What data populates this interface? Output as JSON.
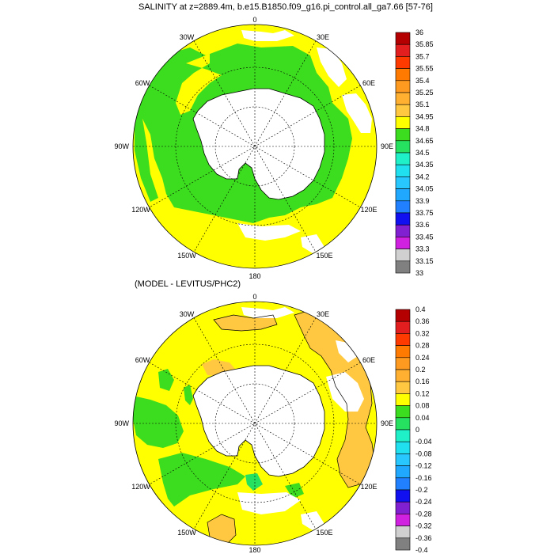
{
  "top_panel": {
    "title": "SALINITY at z=2889.4m, b.e15.B1850.f09_g16.pi_control.all_ga7.66 [57-76]",
    "map_labels": {
      "top": "0",
      "bottom": "180",
      "left": "90W",
      "right": "90E",
      "upper_left_1": "30W",
      "upper_left_2": "60W",
      "upper_right_1": "30E",
      "upper_right_2": "60E",
      "lower_left_1": "120W",
      "lower_left_2": "150W",
      "lower_right_1": "120E",
      "lower_right_2": "150E"
    },
    "colorbar": {
      "levels": [
        "36",
        "35.85",
        "35.7",
        "35.55",
        "35.4",
        "35.25",
        "35.1",
        "34.95",
        "34.8",
        "34.65",
        "34.5",
        "34.35",
        "34.2",
        "34.05",
        "33.9",
        "33.75",
        "33.6",
        "33.45",
        "33.3",
        "33.15",
        "33"
      ],
      "colors": [
        "#b40000",
        "#e21e1e",
        "#ff3a00",
        "#ff7a00",
        "#ff9a20",
        "#ffb030",
        "#ffc840",
        "#ffff00",
        "#3cdc1e",
        "#26e060",
        "#20f0c8",
        "#20e0f0",
        "#28c8ff",
        "#20a8ff",
        "#2080ff",
        "#1010f0",
        "#8020d0",
        "#d020e0",
        "#d0d0d0",
        "#808080"
      ]
    }
  },
  "bottom_panel": {
    "title": "(MODEL - LEVITUS/PHC2)",
    "map_labels": {
      "top": "0",
      "bottom": "180",
      "left": "90W",
      "right": "90E",
      "upper_left_1": "30W",
      "upper_left_2": "60W",
      "upper_right_1": "30E",
      "upper_right_2": "60E",
      "lower_left_1": "120W",
      "lower_left_2": "150W",
      "lower_right_1": "120E",
      "lower_right_2": "150E"
    },
    "colorbar": {
      "levels": [
        "0.4",
        "0.36",
        "0.32",
        "0.28",
        "0.24",
        "0.2",
        "0.16",
        "0.12",
        "0.08",
        "0.04",
        "0",
        "-0.04",
        "-0.08",
        "-0.12",
        "-0.16",
        "-0.2",
        "-0.24",
        "-0.28",
        "-0.32",
        "-0.36",
        "-0.4"
      ],
      "colors": [
        "#b40000",
        "#e21e1e",
        "#ff3a00",
        "#ff7a00",
        "#ff9a20",
        "#ffb030",
        "#ffc840",
        "#ffff00",
        "#3cdc1e",
        "#26e060",
        "#20f0c8",
        "#20e0f0",
        "#28c8ff",
        "#20a8ff",
        "#2080ff",
        "#1010f0",
        "#8020d0",
        "#d020e0",
        "#d0d0d0",
        "#808080"
      ]
    }
  },
  "palette": {
    "yellow": "#ffff00",
    "green": "#3cdc1e",
    "orange": "#ffc840",
    "teal": "#26e060",
    "land": "#ffffff"
  }
}
